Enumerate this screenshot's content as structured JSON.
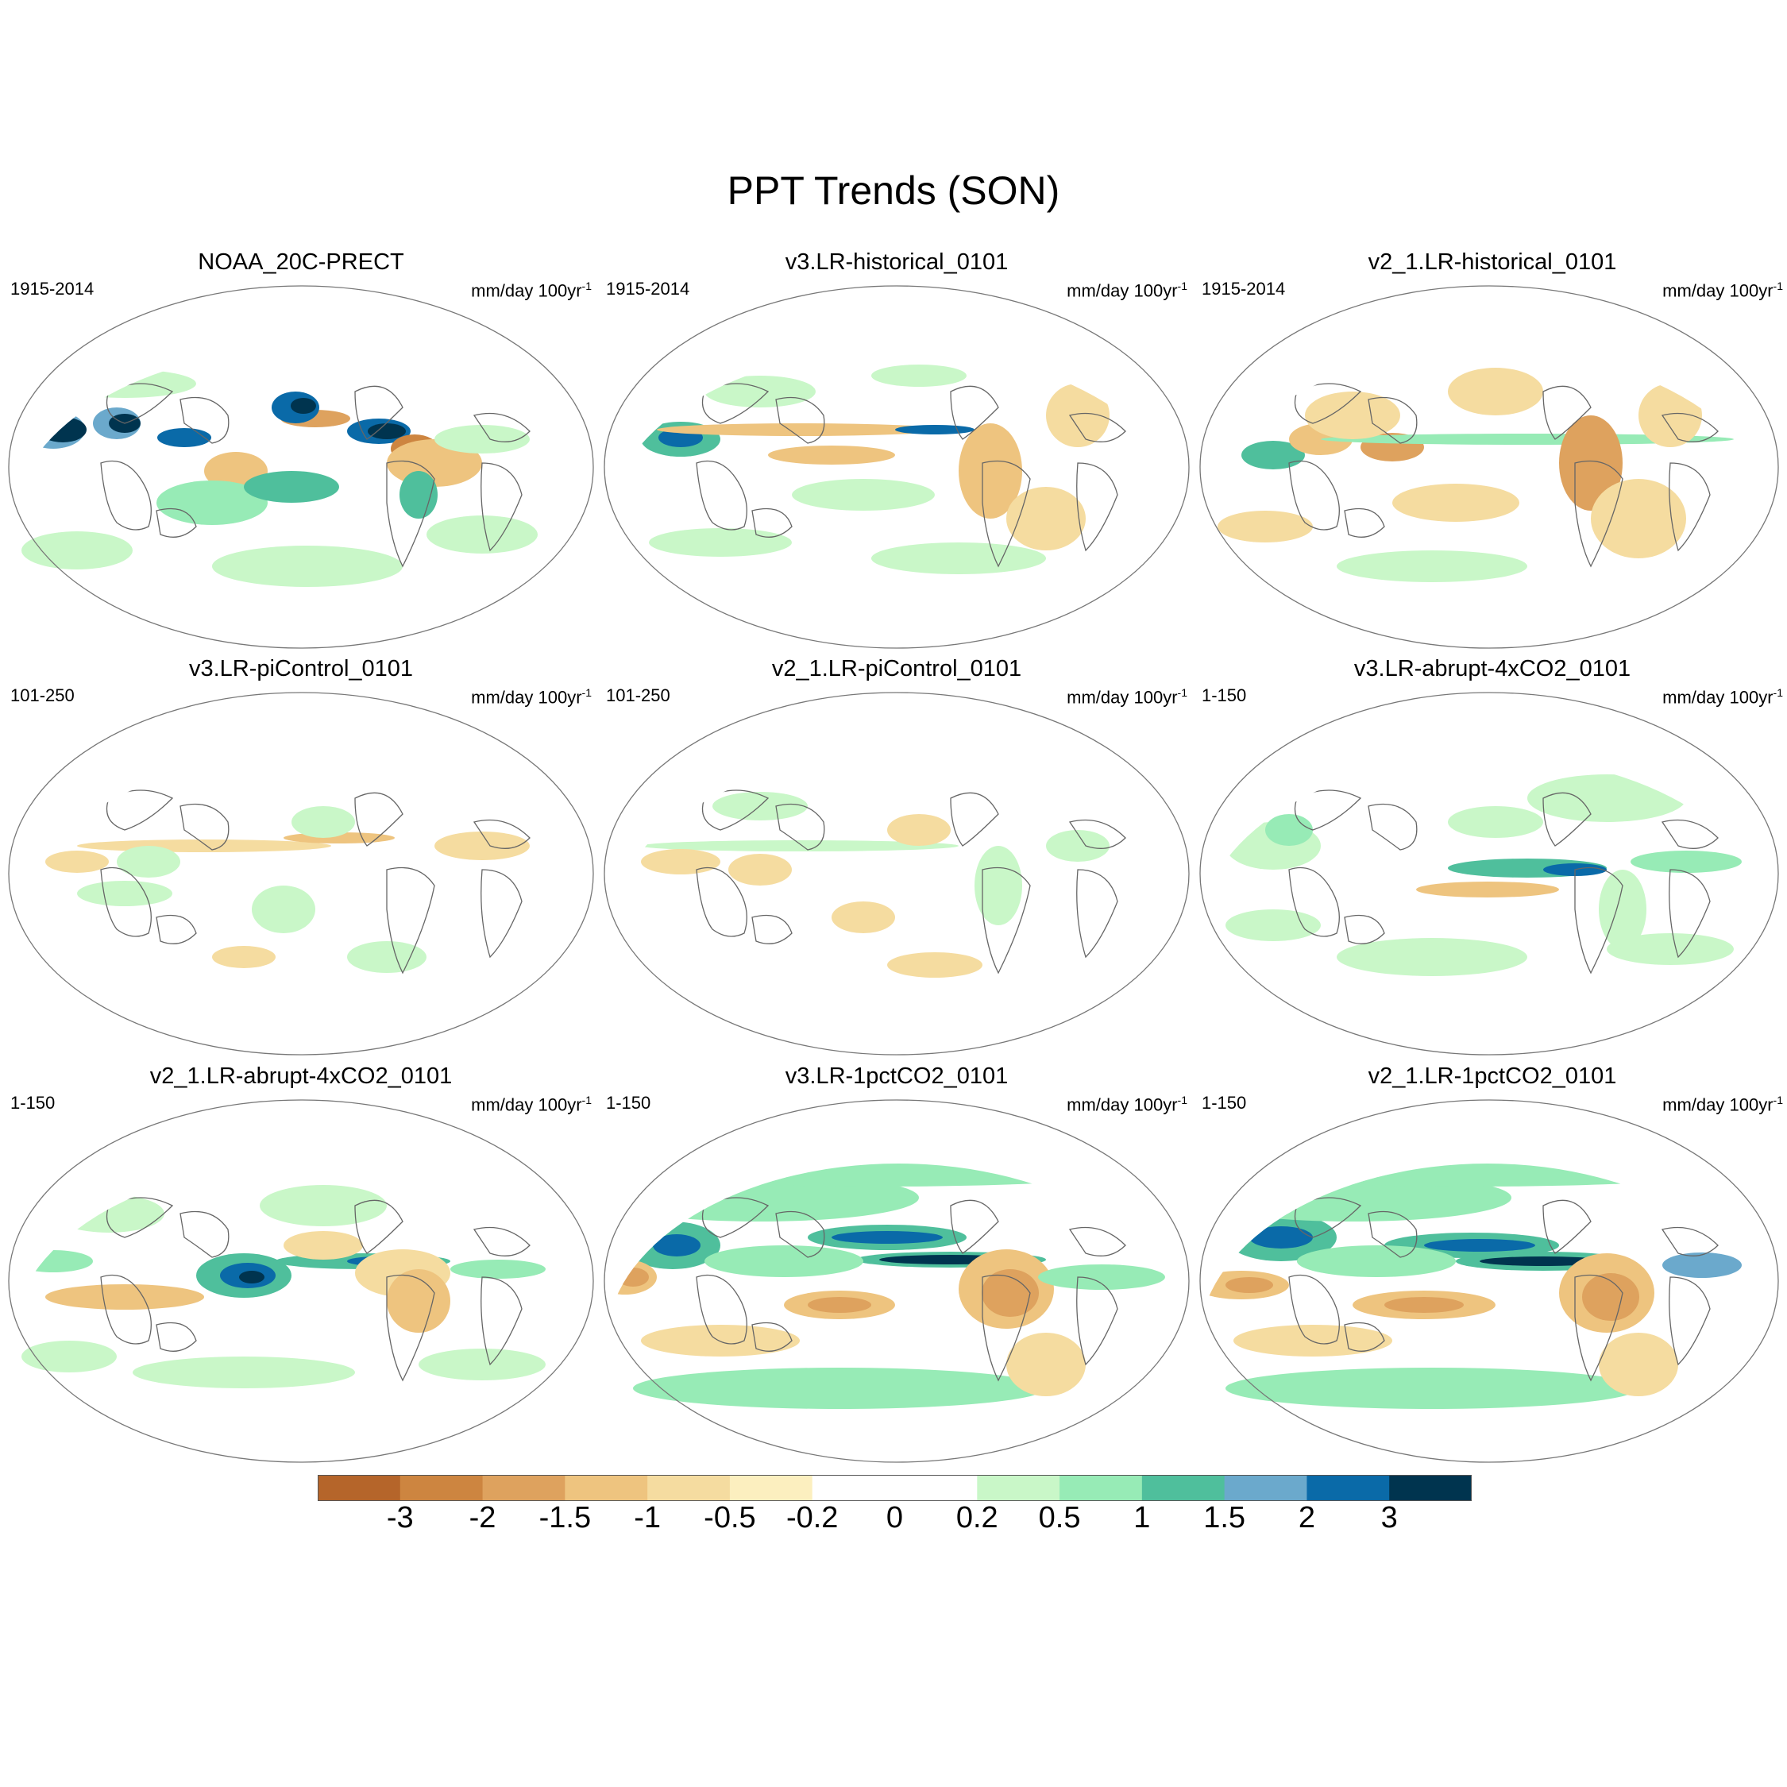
{
  "title": "PPT Trends (SON)",
  "units_text": "mm/day 100yr",
  "units_sup": "-1",
  "panels": [
    {
      "title": "NOAA_20C-PRECT",
      "period": "1915-2014"
    },
    {
      "title": "v3.LR-historical_0101",
      "period": "1915-2014"
    },
    {
      "title": "v2_1.LR-historical_0101",
      "period": "1915-2014"
    },
    {
      "title": "v3.LR-piControl_0101",
      "period": "101-250"
    },
    {
      "title": "v2_1.LR-piControl_0101",
      "period": "101-250"
    },
    {
      "title": "v3.LR-abrupt-4xCO2_0101",
      "period": "1-150"
    },
    {
      "title": "v2_1.LR-abrupt-4xCO2_0101",
      "period": "1-150"
    },
    {
      "title": "v3.LR-1pctCO2_0101",
      "period": "1-150"
    },
    {
      "title": "v2_1.LR-1pctCO2_0101",
      "period": "1-150"
    }
  ],
  "colorbar": {
    "labels": [
      "-3",
      "-2",
      "-1.5",
      "-1",
      "-0.5",
      "-0.2",
      "0",
      "0.2",
      "0.5",
      "1",
      "1.5",
      "2",
      "3"
    ],
    "colors": [
      "#b5652a",
      "#cd8540",
      "#dea25e",
      "#eec47f",
      "#f5dca0",
      "#fcefbf",
      "#ffffff",
      "#ffffff",
      "#c9f7c8",
      "#97ebb6",
      "#4fbf9c",
      "#6ba9cc",
      "#0a6aa8",
      "#00344f"
    ]
  }
}
